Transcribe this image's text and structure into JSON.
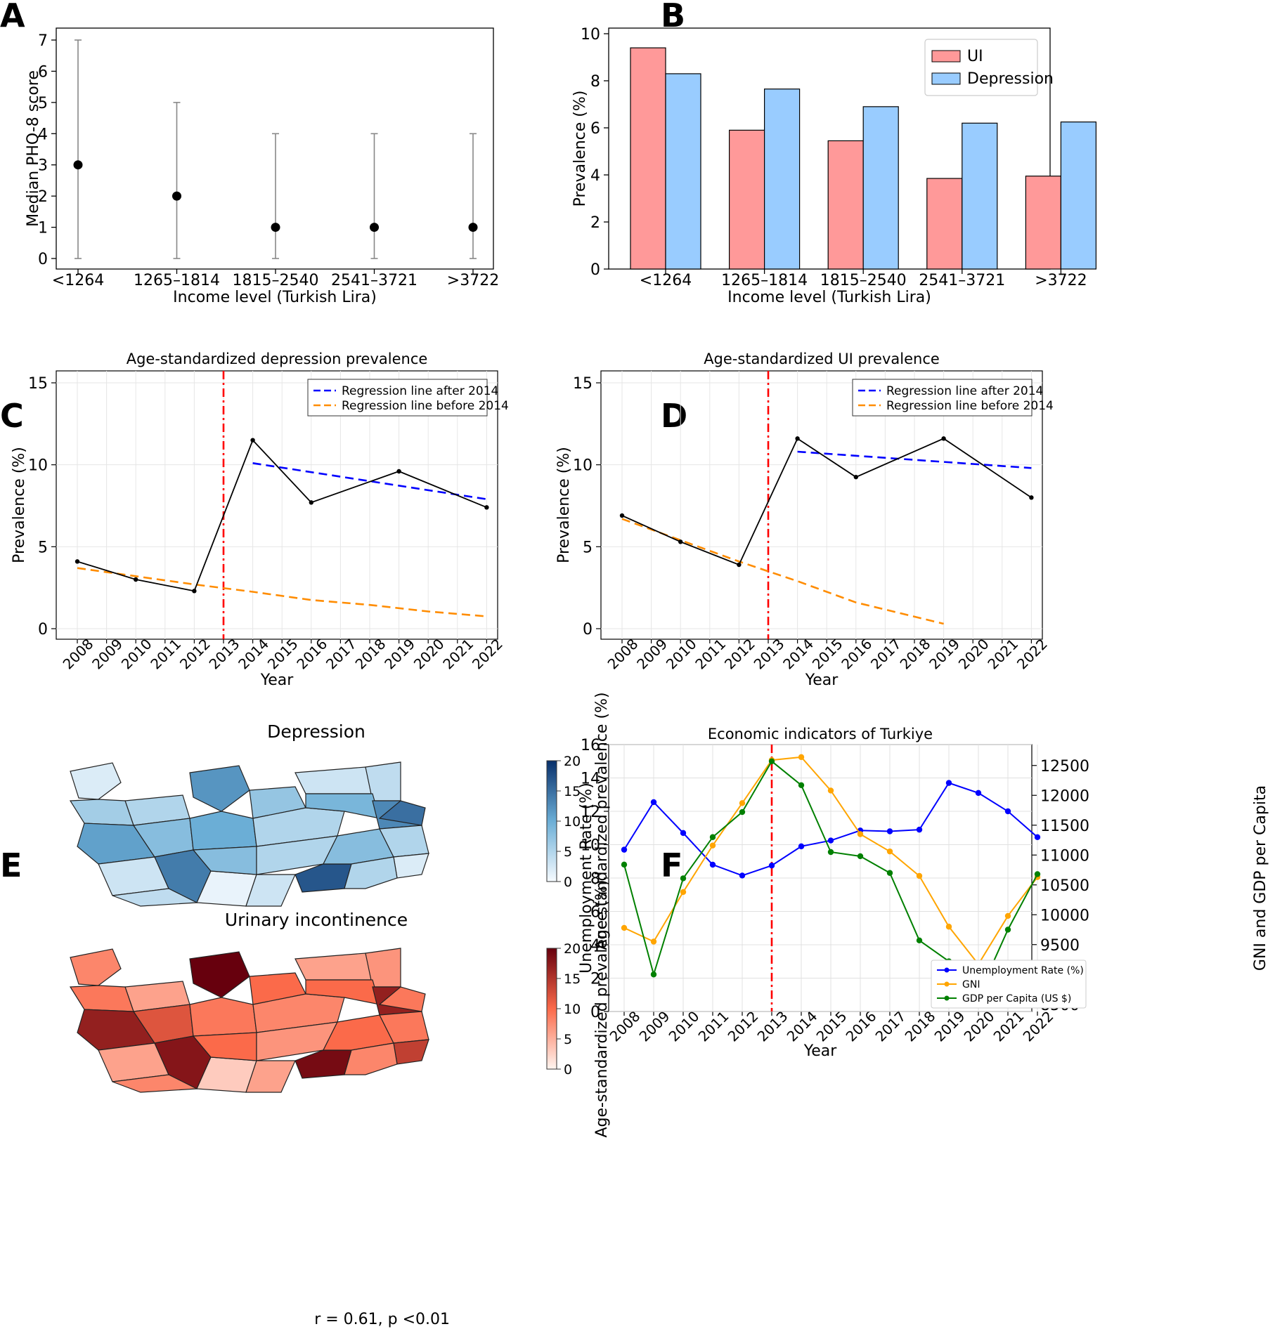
{
  "panel_letters": [
    "A",
    "B",
    "C",
    "D",
    "E",
    "F"
  ],
  "colors": {
    "ui_bar": "#ff9999",
    "depression_bar": "#99ccff",
    "after_line": "#0000ff",
    "before_line": "#ff8c00",
    "cutoff_line": "#ff0000",
    "unemployment": "#0000ff",
    "gni": "#ffa500",
    "gdp": "#008000",
    "blues_dark": "#08519c",
    "reds_dark": "#a50f15"
  },
  "chart_data": [
    {
      "panel": "A",
      "type": "scatter",
      "categories": [
        "<1264",
        "1265–1814",
        "1815–2540",
        "2541–3721",
        ">3722"
      ],
      "values": [
        3,
        2,
        1,
        1,
        1
      ],
      "error_low": [
        0,
        0,
        0,
        0,
        0
      ],
      "error_high": [
        7,
        5,
        4,
        4,
        4
      ],
      "title": "",
      "xlabel": "Income level (Turkish Lira)",
      "ylabel": "Median PHQ-8 score",
      "ylim": [
        0,
        7
      ],
      "yticks": [
        "0",
        "1",
        "2",
        "3",
        "4",
        "5",
        "6",
        "7"
      ],
      "grid": false
    },
    {
      "panel": "B",
      "type": "bar",
      "categories": [
        "<1264",
        "1265–1814",
        "1815–2540",
        "2541–3721",
        ">3722"
      ],
      "series": [
        {
          "name": "UI",
          "values": [
            9.4,
            5.9,
            5.45,
            3.85,
            3.95
          ]
        },
        {
          "name": "Depression",
          "values": [
            8.3,
            7.65,
            6.9,
            6.2,
            6.25
          ]
        }
      ],
      "title": "",
      "xlabel": "Income level (Turkish Lira)",
      "ylabel": "Prevalence (%)",
      "ylim": [
        0,
        10
      ],
      "yticks": [
        "0",
        "2",
        "4",
        "6",
        "8",
        "10"
      ],
      "legend": "top-right",
      "grid": false
    },
    {
      "panel": "C",
      "type": "line",
      "title": "Age-standardized depression prevalence",
      "xlabel": "Year",
      "ylabel": "Prevalence (%)",
      "x": [
        "2008",
        "2009",
        "2010",
        "2011",
        "2012",
        "2013",
        "2014",
        "2015",
        "2016",
        "2017",
        "2018",
        "2019",
        "2020",
        "2021",
        "2022"
      ],
      "series": [
        {
          "points": [
            [
              2008,
              4.1
            ],
            [
              2010,
              3.0
            ],
            [
              2012,
              2.3
            ],
            [
              2014,
              11.5
            ],
            [
              2016,
              7.7
            ],
            [
              2019,
              9.6
            ],
            [
              2022,
              7.4
            ]
          ]
        },
        {
          "name": "Regression line after 2014",
          "points": [
            [
              2014,
              10.1
            ],
            [
              2022,
              7.9
            ]
          ]
        },
        {
          "name": "Regression line before 2014",
          "points": [
            [
              2008,
              3.7
            ],
            [
              2010,
              3.2
            ],
            [
              2012,
              2.7
            ],
            [
              2014,
              2.25
            ],
            [
              2016,
              1.75
            ],
            [
              2018,
              1.45
            ],
            [
              2020,
              1.05
            ],
            [
              2022,
              0.75
            ]
          ]
        }
      ],
      "cutoff_x": 2013,
      "ylim": [
        -0.5,
        16
      ],
      "yticks": [
        "0",
        "5",
        "10",
        "15"
      ],
      "legend": "top-right",
      "grid": true
    },
    {
      "panel": "D",
      "type": "line",
      "title": "Age-standardized UI prevalence",
      "xlabel": "Year",
      "ylabel": "Prevalence (%)",
      "x": [
        "2008",
        "2009",
        "2010",
        "2011",
        "2012",
        "2013",
        "2014",
        "2015",
        "2016",
        "2017",
        "2018",
        "2019",
        "2020",
        "2021",
        "2022"
      ],
      "series": [
        {
          "points": [
            [
              2008,
              6.9
            ],
            [
              2010,
              5.3
            ],
            [
              2012,
              3.9
            ],
            [
              2014,
              11.6
            ],
            [
              2016,
              9.25
            ],
            [
              2019,
              11.6
            ],
            [
              2022,
              8.0
            ]
          ]
        },
        {
          "name": "Regression line after 2014",
          "points": [
            [
              2014,
              10.8
            ],
            [
              2022,
              9.8
            ]
          ]
        },
        {
          "name": "Regression line before 2014",
          "points": [
            [
              2008,
              6.7
            ],
            [
              2010,
              5.4
            ],
            [
              2012,
              4.1
            ],
            [
              2014,
              2.9
            ],
            [
              2016,
              1.6
            ],
            [
              2019,
              0.3
            ]
          ]
        }
      ],
      "cutoff_x": 2013,
      "ylim": [
        -0.5,
        16
      ],
      "yticks": [
        "0",
        "5",
        "10",
        "15"
      ],
      "legend": "top-right",
      "grid": true
    },
    {
      "panel": "F",
      "type": "line",
      "title": "Economic indicators of Turkiye",
      "xlabel": "Year",
      "ylabel": "Unemployment Rate (%)",
      "ylabel_right": "GNI and GDP per Capita",
      "x": [
        "2008",
        "2009",
        "2010",
        "2011",
        "2012",
        "2013",
        "2014",
        "2015",
        "2016",
        "2017",
        "2018",
        "2019",
        "2020",
        "2021",
        "2022"
      ],
      "series": [
        {
          "name": "Unemployment Rate (%)",
          "axis": "left",
          "values": [
            9.7,
            12.55,
            10.7,
            8.8,
            8.15,
            8.75,
            9.9,
            10.25,
            10.85,
            10.8,
            10.9,
            13.7,
            13.1,
            12.0,
            10.45
          ]
        },
        {
          "name": "GNI",
          "axis": "right",
          "values": [
            9780,
            9550,
            10380,
            11160,
            11870,
            12590,
            12640,
            12080,
            11350,
            11060,
            10650,
            9800,
            9170,
            9980,
            10630
          ]
        },
        {
          "name": "GDP per Capita (US $)",
          "axis": "right",
          "values": [
            10840,
            9000,
            10610,
            11300,
            11720,
            12570,
            12170,
            11050,
            10980,
            10700,
            9570,
            9220,
            8650,
            9750,
            10680
          ]
        }
      ],
      "cutoff_x": 2013,
      "ylim": [
        0,
        16
      ],
      "ylim_right": [
        8450,
        12850
      ],
      "yticks": [
        "0",
        "2",
        "4",
        "6",
        "8",
        "10",
        "12",
        "14",
        "16"
      ],
      "yticks_right": [
        "8500",
        "9000",
        "9500",
        "10000",
        "10500",
        "11000",
        "11500",
        "12000",
        "12500"
      ],
      "legend": "bottom-center",
      "grid": true
    }
  ],
  "maps": {
    "depression": {
      "title": "Depression",
      "colorbar_label": "Age-standardized prevalence (%)",
      "colorbar_ticks": [
        "0",
        "5",
        "10",
        "15",
        "20"
      ],
      "colormap": "Blues"
    },
    "ui": {
      "title": "Urinary incontinence",
      "colorbar_label": "Age-standardized prevalence (%)",
      "colorbar_ticks": [
        "0",
        "5",
        "10",
        "15",
        "20"
      ],
      "colormap": "Reds"
    },
    "regions": [
      {
        "dep": 2,
        "ui": 8
      },
      {
        "dep": 5,
        "ui": 6
      },
      {
        "dep": 6,
        "ui": 9
      },
      {
        "dep": 12,
        "ui": 20
      },
      {
        "dep": 7,
        "ui": 10
      },
      {
        "dep": 3,
        "ui": 6
      },
      {
        "dep": 4,
        "ui": 7
      },
      {
        "dep": 11,
        "ui": 17
      },
      {
        "dep": 8,
        "ui": 12
      },
      {
        "dep": 10,
        "ui": 9
      },
      {
        "dep": 5,
        "ui": 8
      },
      {
        "dep": 9,
        "ui": 10
      },
      {
        "dep": 13,
        "ui": 17
      },
      {
        "dep": 3,
        "ui": 6
      },
      {
        "dep": 14,
        "ui": 18
      },
      {
        "dep": 1,
        "ui": 3
      },
      {
        "dep": 8,
        "ui": 10
      },
      {
        "dep": 5,
        "ui": 7
      },
      {
        "dep": 3,
        "ui": 6
      },
      {
        "dep": 17,
        "ui": 19
      },
      {
        "dep": 8,
        "ui": 10
      },
      {
        "dep": 5,
        "ui": 9
      },
      {
        "dep": 2,
        "ui": 14
      },
      {
        "dep": 5,
        "ui": 8
      },
      {
        "dep": 4,
        "ui": 8
      },
      {
        "dep": 15,
        "ui": 9
      }
    ],
    "correlation_text": "r = 0.61, p <0.01"
  }
}
